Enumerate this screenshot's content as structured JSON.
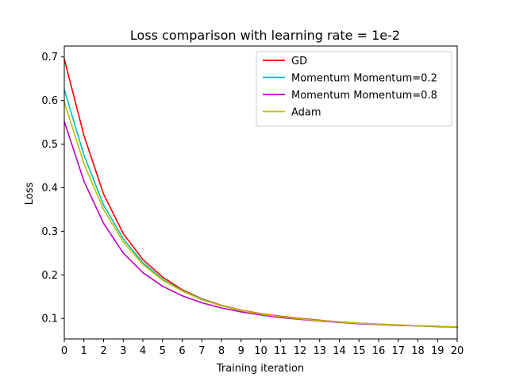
{
  "chart_data": {
    "type": "line",
    "title": "Loss comparison with learning rate = 1e-2",
    "xlabel": "Training iteration",
    "ylabel": "Loss",
    "xlim": [
      0,
      20
    ],
    "ylim": [
      0.053,
      0.725
    ],
    "x": [
      0,
      1,
      2,
      3,
      4,
      5,
      6,
      7,
      8,
      9,
      10,
      11,
      12,
      13,
      14,
      15,
      16,
      17,
      18,
      19,
      20
    ],
    "x_ticks": [
      0,
      1,
      2,
      3,
      4,
      5,
      6,
      7,
      8,
      9,
      10,
      11,
      12,
      13,
      14,
      15,
      16,
      17,
      18,
      19,
      20
    ],
    "y_ticks": [
      0.1,
      0.2,
      0.3,
      0.4,
      0.5,
      0.6,
      0.7
    ],
    "grid": false,
    "legend_position": "top-right",
    "series": [
      {
        "name": "GD",
        "color": "#ff0000",
        "values": [
          0.695,
          0.52,
          0.385,
          0.295,
          0.235,
          0.195,
          0.166,
          0.145,
          0.13,
          0.119,
          0.111,
          0.105,
          0.1,
          0.096,
          0.092,
          0.089,
          0.087,
          0.085,
          0.083,
          0.082,
          0.08
        ]
      },
      {
        "name": "Momentum Momentum=0.2",
        "color": "#00bfbf",
        "values": [
          0.625,
          0.475,
          0.36,
          0.283,
          0.228,
          0.19,
          0.164,
          0.144,
          0.129,
          0.118,
          0.11,
          0.104,
          0.099,
          0.095,
          0.092,
          0.089,
          0.087,
          0.085,
          0.083,
          0.082,
          0.08
        ]
      },
      {
        "name": "Momentum Momentum=0.8",
        "color": "#bf00bf",
        "values": [
          0.552,
          0.415,
          0.318,
          0.25,
          0.205,
          0.174,
          0.152,
          0.136,
          0.124,
          0.115,
          0.108,
          0.102,
          0.098,
          0.094,
          0.091,
          0.088,
          0.086,
          0.084,
          0.083,
          0.081,
          0.08
        ]
      },
      {
        "name": "Adam",
        "color": "#bfbf00",
        "values": [
          0.597,
          0.455,
          0.35,
          0.276,
          0.224,
          0.188,
          0.163,
          0.143,
          0.129,
          0.118,
          0.11,
          0.104,
          0.099,
          0.095,
          0.092,
          0.089,
          0.087,
          0.085,
          0.083,
          0.082,
          0.08
        ]
      }
    ]
  }
}
